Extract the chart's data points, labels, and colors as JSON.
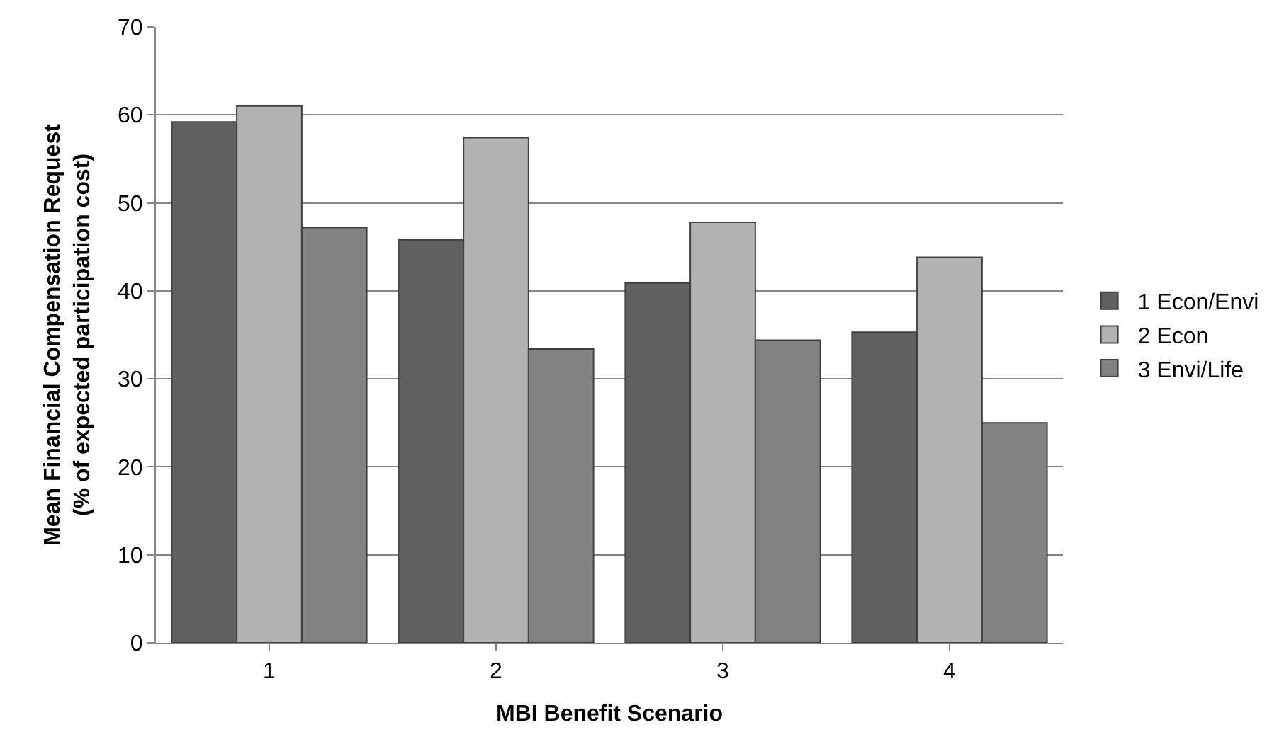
{
  "chart_data": {
    "type": "bar",
    "xlabel": "MBI Benefit Scenario",
    "ylabel": "Mean Financial Compensation Request\n(% of expected participation cost)",
    "categories": [
      "1",
      "2",
      "3",
      "4"
    ],
    "series": [
      {
        "name": "1 Econ/Envi",
        "color": "#606060",
        "values": [
          59.2,
          45.8,
          40.9,
          35.3
        ]
      },
      {
        "name": "2 Econ",
        "color": "#b2b2b2",
        "values": [
          61.0,
          57.4,
          47.8,
          43.8
        ]
      },
      {
        "name": "3 Envi/Life",
        "color": "#828282",
        "values": [
          47.2,
          33.4,
          34.4,
          25.0
        ]
      }
    ],
    "ylim": [
      0,
      70
    ],
    "yticks": [
      0,
      10,
      20,
      30,
      40,
      50,
      60,
      70
    ],
    "grid": "y",
    "legend": "right"
  }
}
